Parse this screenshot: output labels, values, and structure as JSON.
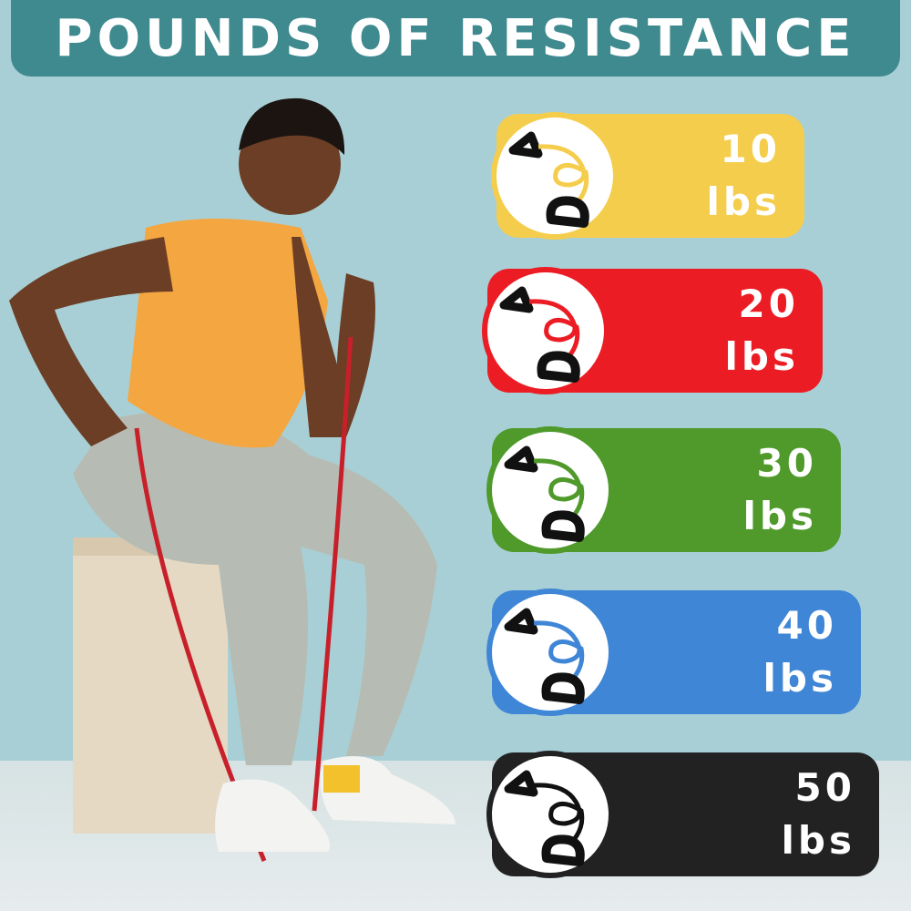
{
  "header": {
    "title": "POUNDS OF RESISTANCE"
  },
  "bands": [
    {
      "value": "10",
      "unit": "lbs",
      "color": "#f5cd4c"
    },
    {
      "value": "20",
      "unit": "lbs",
      "color": "#ec1c24"
    },
    {
      "value": "30",
      "unit": "lbs",
      "color": "#4f9a2b"
    },
    {
      "value": "40",
      "unit": "lbs",
      "color": "#3f86d6"
    },
    {
      "value": "50",
      "unit": "lbs",
      "color": "#222222"
    }
  ]
}
